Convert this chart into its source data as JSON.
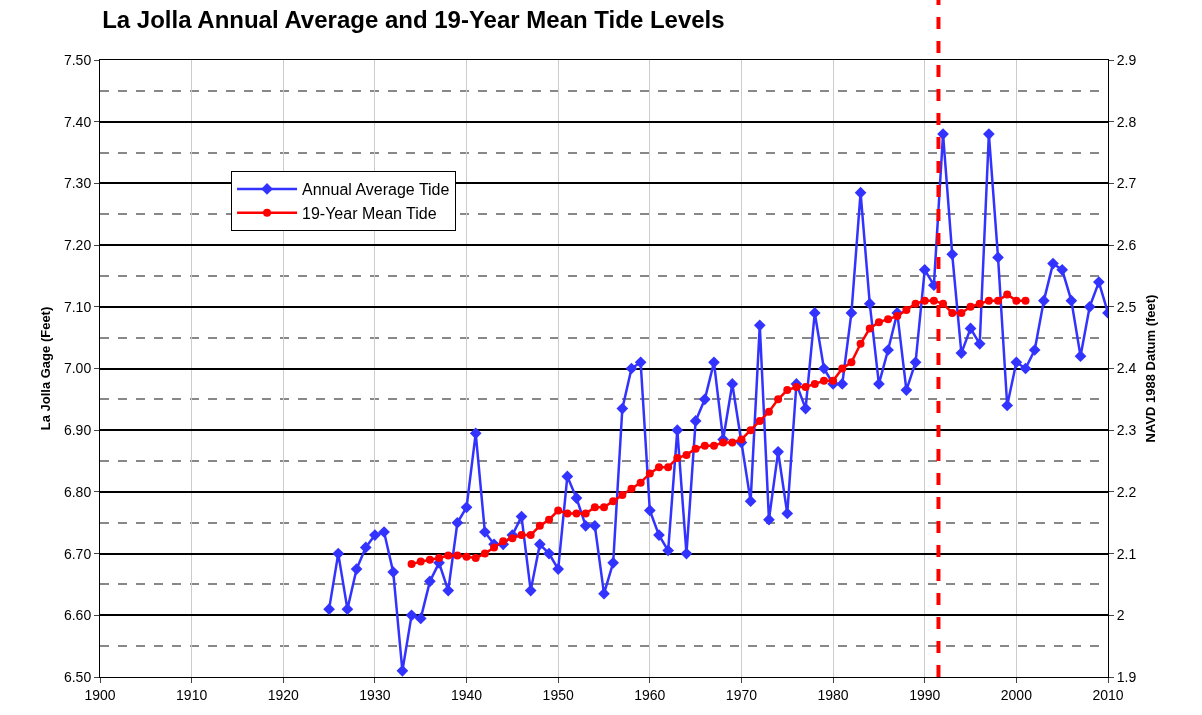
{
  "chart_data": {
    "type": "line",
    "title": "La Jolla Annual Average and 19-Year Mean Tide Levels",
    "ylabel": "La Jolla Gage (Feet)",
    "y2label": "NAVD 1988 Datum (feet)",
    "series": [
      {
        "name": "Annual Average Tide",
        "color": "#3333ff",
        "marker": "diamond",
        "x": [
          1925,
          1926,
          1927,
          1928,
          1929,
          1930,
          1931,
          1932,
          1933,
          1934,
          1935,
          1936,
          1937,
          1938,
          1939,
          1940,
          1941,
          1942,
          1943,
          1944,
          1945,
          1946,
          1947,
          1948,
          1949,
          1950,
          1951,
          1952,
          1953,
          1954,
          1955,
          1956,
          1957,
          1958,
          1959,
          1960,
          1961,
          1962,
          1963,
          1964,
          1965,
          1966,
          1967,
          1968,
          1969,
          1970,
          1971,
          1972,
          1973,
          1974,
          1975,
          1976,
          1977,
          1978,
          1979,
          1980,
          1981,
          1982,
          1983,
          1984,
          1985,
          1986,
          1987,
          1988,
          1989,
          1990,
          1991,
          1992,
          1993,
          1994,
          1995,
          1996,
          1997,
          1998,
          1999,
          2000,
          2001,
          2002,
          2003,
          2004,
          2005,
          2006,
          2007,
          2008,
          2009,
          2010
        ],
        "values": [
          6.61,
          6.7,
          6.61,
          6.675,
          6.71,
          6.73,
          6.735,
          6.67,
          6.51,
          6.6,
          6.595,
          6.655,
          6.685,
          6.64,
          6.75,
          6.775,
          6.895,
          6.735,
          6.715,
          6.715,
          6.73,
          6.76,
          6.64,
          6.715,
          6.7,
          6.675,
          6.825,
          6.79,
          6.745,
          6.745,
          6.635,
          6.685,
          6.935,
          7.0,
          7.01,
          6.77,
          6.73,
          6.705,
          6.9,
          6.7,
          6.915,
          6.95,
          7.01,
          6.885,
          6.975,
          6.88,
          6.785,
          7.07,
          6.755,
          6.865,
          6.765,
          6.975,
          6.935,
          7.09,
          7.0,
          6.975,
          6.975,
          7.09,
          7.285,
          7.105,
          6.975,
          7.03,
          7.09,
          6.965,
          7.01,
          7.16,
          7.135,
          7.38,
          7.185,
          7.025,
          7.065,
          7.04,
          7.38,
          7.18,
          6.94,
          7.01,
          7.0,
          7.03,
          7.11,
          7.17,
          7.16,
          7.11,
          7.02,
          7.1,
          7.14,
          7.09
        ]
      },
      {
        "name": "19-Year Mean Tide",
        "color": "#ff0000",
        "marker": "circle",
        "x": [
          1934,
          1935,
          1936,
          1937,
          1938,
          1939,
          1940,
          1941,
          1942,
          1943,
          1944,
          1945,
          1946,
          1947,
          1948,
          1949,
          1950,
          1951,
          1952,
          1953,
          1954,
          1955,
          1956,
          1957,
          1958,
          1959,
          1960,
          1961,
          1962,
          1963,
          1964,
          1965,
          1966,
          1967,
          1968,
          1969,
          1970,
          1971,
          1972,
          1973,
          1974,
          1975,
          1976,
          1977,
          1978,
          1979,
          1980,
          1981,
          1982,
          1983,
          1984,
          1985,
          1986,
          1987,
          1988,
          1989,
          1990,
          1991,
          1992,
          1993,
          1994,
          1995,
          1996,
          1997,
          1998,
          1999,
          2000,
          2001
        ],
        "values": [
          6.683,
          6.687,
          6.69,
          6.693,
          6.697,
          6.697,
          6.695,
          6.693,
          6.7,
          6.71,
          6.72,
          6.725,
          6.73,
          6.73,
          6.745,
          6.755,
          6.77,
          6.765,
          6.765,
          6.765,
          6.775,
          6.775,
          6.785,
          6.795,
          6.805,
          6.815,
          6.83,
          6.84,
          6.84,
          6.855,
          6.86,
          6.87,
          6.875,
          6.875,
          6.88,
          6.88,
          6.885,
          6.9,
          6.915,
          6.93,
          6.95,
          6.965,
          6.97,
          6.97,
          6.975,
          6.98,
          6.98,
          7.0,
          7.01,
          7.04,
          7.065,
          7.075,
          7.08,
          7.085,
          7.095,
          7.105,
          7.11,
          7.11,
          7.105,
          7.09,
          7.09,
          7.1,
          7.105,
          7.11,
          7.11,
          7.12,
          7.11,
          7.11
        ]
      }
    ],
    "xlim": [
      1900,
      2010
    ],
    "xticks": [
      1900,
      1910,
      1920,
      1930,
      1940,
      1950,
      1960,
      1970,
      1980,
      1990,
      2000,
      2010
    ],
    "ylim": [
      6.5,
      7.5
    ],
    "yticks": [
      {
        "value": 6.5,
        "label": "6.50"
      },
      {
        "value": 6.55,
        "label": null
      },
      {
        "value": 6.6,
        "label": "6.60"
      },
      {
        "value": 6.65,
        "label": null
      },
      {
        "value": 6.7,
        "label": "6.70"
      },
      {
        "value": 6.75,
        "label": null
      },
      {
        "value": 6.8,
        "label": "6.80"
      },
      {
        "value": 6.85,
        "label": null
      },
      {
        "value": 6.9,
        "label": "6.90"
      },
      {
        "value": 6.95,
        "label": null
      },
      {
        "value": 7.0,
        "label": "7.00"
      },
      {
        "value": 7.05,
        "label": null
      },
      {
        "value": 7.1,
        "label": "7.10"
      },
      {
        "value": 7.15,
        "label": null
      },
      {
        "value": 7.2,
        "label": "7.20"
      },
      {
        "value": 7.25,
        "label": null
      },
      {
        "value": 7.3,
        "label": "7.30"
      },
      {
        "value": 7.35,
        "label": null
      },
      {
        "value": 7.4,
        "label": "7.40"
      },
      {
        "value": 7.45,
        "label": null
      },
      {
        "value": 7.5,
        "label": "7.50"
      }
    ],
    "y2lim": [
      1.9,
      2.9
    ],
    "y2ticks": [
      1.9,
      2,
      2.1,
      2.2,
      2.3,
      2.4,
      2.5,
      2.6,
      2.7,
      2.8,
      2.9
    ],
    "ref_lines": [
      {
        "axis": "x",
        "value": 1991.5,
        "color": "#ff0000",
        "line_style": "dashed"
      }
    ],
    "grid": true,
    "legend": "top left",
    "line_style": "solid"
  }
}
